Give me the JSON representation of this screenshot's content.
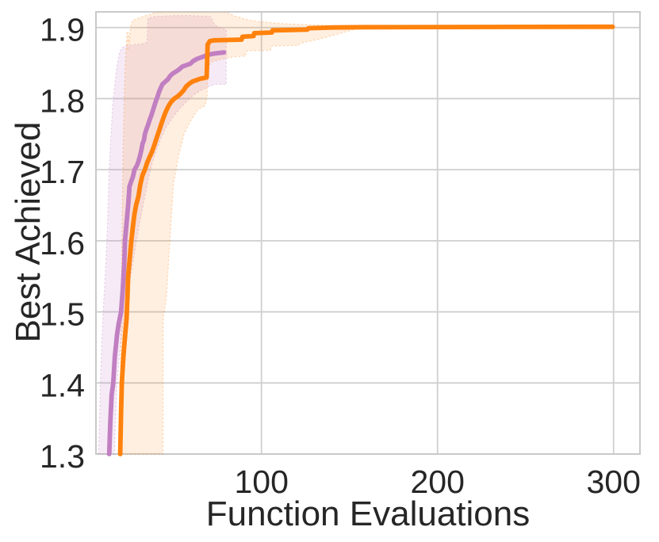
{
  "chart_data": {
    "type": "line",
    "title": "",
    "xlabel": "Function Evaluations",
    "ylabel": "Best Achieved",
    "xlim": [
      6,
      315
    ],
    "ylim": [
      1.3,
      1.922
    ],
    "xticks": [
      100,
      200,
      300
    ],
    "xtick_labels": [
      "100",
      "200",
      "300"
    ],
    "yticks": [
      1.3,
      1.4,
      1.5,
      1.6,
      1.7,
      1.8,
      1.9
    ],
    "ytick_labels": [
      "1.3",
      "1.4",
      "1.5",
      "1.6",
      "1.7",
      "1.8",
      "1.9"
    ],
    "grid": true,
    "legend": false,
    "background_color": "#ffffff",
    "grid_color": "#cfcfcf",
    "spine_color": "#c9c9c9",
    "text_color": "#262626",
    "series": [
      {
        "name": "purple",
        "color": "#c17fc2",
        "band_opacity": 0.16,
        "points": [
          [
            13.5,
            1.3
          ],
          [
            14.2,
            1.347
          ],
          [
            14.9,
            1.383
          ],
          [
            15.8,
            1.4
          ],
          [
            16.7,
            1.437
          ],
          [
            18.0,
            1.468
          ],
          [
            18.9,
            1.483
          ],
          [
            20.3,
            1.5
          ],
          [
            21.2,
            1.53
          ],
          [
            22.1,
            1.568
          ],
          [
            22.5,
            1.6
          ],
          [
            23.4,
            1.625
          ],
          [
            24.3,
            1.65
          ],
          [
            24.8,
            1.666
          ],
          [
            25.0,
            1.676
          ],
          [
            26.1,
            1.684
          ],
          [
            27.0,
            1.69
          ],
          [
            27.9,
            1.7
          ],
          [
            29.3,
            1.706
          ],
          [
            30.2,
            1.712
          ],
          [
            31.1,
            1.72
          ],
          [
            32.0,
            1.73
          ],
          [
            32.4,
            1.736
          ],
          [
            33.3,
            1.742
          ],
          [
            33.8,
            1.75
          ],
          [
            34.7,
            1.757
          ],
          [
            35.6,
            1.763
          ],
          [
            36.5,
            1.77
          ],
          [
            37.4,
            1.776
          ],
          [
            38.3,
            1.783
          ],
          [
            39.2,
            1.79
          ],
          [
            40.1,
            1.797
          ],
          [
            41.0,
            1.803
          ],
          [
            41.9,
            1.81
          ],
          [
            42.8,
            1.815
          ],
          [
            43.7,
            1.82
          ],
          [
            45.0,
            1.823
          ],
          [
            46.8,
            1.827
          ],
          [
            48.2,
            1.832
          ],
          [
            49.5,
            1.835
          ],
          [
            51.4,
            1.838
          ],
          [
            53.2,
            1.841
          ],
          [
            55.0,
            1.845
          ],
          [
            57.2,
            1.847
          ],
          [
            59.5,
            1.849
          ],
          [
            61.3,
            1.853
          ],
          [
            63.5,
            1.856
          ],
          [
            65.8,
            1.858
          ],
          [
            68.0,
            1.86
          ],
          [
            70.3,
            1.862
          ],
          [
            72.5,
            1.863
          ],
          [
            75.2,
            1.864
          ],
          [
            78.8,
            1.865
          ]
        ],
        "band_upper": [
          [
            7.5,
            1.3
          ],
          [
            8.5,
            1.4
          ],
          [
            9.5,
            1.47
          ],
          [
            10.5,
            1.52
          ],
          [
            11.5,
            1.56
          ],
          [
            12.5,
            1.62
          ],
          [
            13.5,
            1.7
          ],
          [
            14.5,
            1.75
          ],
          [
            15.5,
            1.79
          ],
          [
            16.5,
            1.815
          ],
          [
            17.5,
            1.838
          ],
          [
            18.5,
            1.855
          ],
          [
            19.5,
            1.866
          ],
          [
            21.0,
            1.872
          ],
          [
            24.0,
            1.875
          ],
          [
            28.0,
            1.876
          ],
          [
            32.0,
            1.877
          ],
          [
            35.0,
            1.879
          ],
          [
            35.5,
            1.913
          ],
          [
            40.0,
            1.9155
          ],
          [
            48.0,
            1.9165
          ],
          [
            58.0,
            1.917
          ],
          [
            66.0,
            1.916
          ],
          [
            71.0,
            1.9155
          ],
          [
            73.0,
            1.906
          ],
          [
            75.0,
            1.901
          ],
          [
            77.0,
            1.899
          ],
          [
            80.0,
            1.897
          ]
        ],
        "band_lower": [
          [
            16.5,
            1.3
          ],
          [
            17.0,
            1.34
          ],
          [
            17.5,
            1.37
          ],
          [
            18.0,
            1.4
          ],
          [
            19.0,
            1.43
          ],
          [
            20.0,
            1.455
          ],
          [
            22.0,
            1.49
          ],
          [
            24.0,
            1.52
          ],
          [
            26.0,
            1.555
          ],
          [
            28.0,
            1.585
          ],
          [
            30.0,
            1.615
          ],
          [
            32.0,
            1.64
          ],
          [
            34.0,
            1.665
          ],
          [
            36.0,
            1.69
          ],
          [
            38.0,
            1.71
          ],
          [
            40.0,
            1.725
          ],
          [
            43.0,
            1.745
          ],
          [
            46.0,
            1.76
          ],
          [
            50.0,
            1.775
          ],
          [
            54.0,
            1.787
          ],
          [
            58.0,
            1.797
          ],
          [
            62.0,
            1.806
          ],
          [
            66.0,
            1.812
          ],
          [
            70.0,
            1.817
          ],
          [
            74.0,
            1.82
          ],
          [
            80.0,
            1.82
          ]
        ]
      },
      {
        "name": "orange",
        "color": "#ff820d",
        "band_opacity": 0.13,
        "points": [
          [
            19.8,
            1.3
          ],
          [
            20.3,
            1.36
          ],
          [
            20.7,
            1.4
          ],
          [
            21.6,
            1.437
          ],
          [
            22.5,
            1.465
          ],
          [
            23.4,
            1.49
          ],
          [
            23.9,
            1.52
          ],
          [
            24.3,
            1.55
          ],
          [
            25.2,
            1.575
          ],
          [
            26.1,
            1.6
          ],
          [
            27.0,
            1.62
          ],
          [
            27.9,
            1.638
          ],
          [
            28.8,
            1.65
          ],
          [
            30.2,
            1.663
          ],
          [
            31.1,
            1.678
          ],
          [
            32.4,
            1.692
          ],
          [
            33.8,
            1.7
          ],
          [
            35.1,
            1.71
          ],
          [
            36.5,
            1.718
          ],
          [
            37.8,
            1.725
          ],
          [
            39.2,
            1.735
          ],
          [
            40.5,
            1.745
          ],
          [
            41.9,
            1.755
          ],
          [
            43.2,
            1.765
          ],
          [
            44.6,
            1.775
          ],
          [
            45.9,
            1.783
          ],
          [
            47.3,
            1.79
          ],
          [
            48.6,
            1.795
          ],
          [
            50.5,
            1.8
          ],
          [
            52.3,
            1.803
          ],
          [
            54.1,
            1.807
          ],
          [
            55.9,
            1.812
          ],
          [
            57.2,
            1.817
          ],
          [
            59.0,
            1.821
          ],
          [
            60.8,
            1.824
          ],
          [
            63.1,
            1.826
          ],
          [
            65.3,
            1.828
          ],
          [
            67.6,
            1.829
          ],
          [
            68.9,
            1.83
          ],
          [
            69.4,
            1.876
          ],
          [
            70.7,
            1.881
          ],
          [
            73.0,
            1.882
          ],
          [
            88.7,
            1.883
          ],
          [
            89.2,
            1.887
          ],
          [
            95.5,
            1.888
          ],
          [
            95.9,
            1.892
          ],
          [
            105.9,
            1.893
          ],
          [
            106.3,
            1.896
          ],
          [
            126.1,
            1.897
          ],
          [
            126.6,
            1.899
          ],
          [
            140.5,
            1.9
          ],
          [
            158.6,
            1.9005
          ],
          [
            299.5,
            1.901
          ]
        ],
        "band_upper": [
          [
            19.5,
            1.3
          ],
          [
            20.0,
            1.42
          ],
          [
            20.5,
            1.55
          ],
          [
            21.0,
            1.65
          ],
          [
            21.5,
            1.73
          ],
          [
            22.0,
            1.79
          ],
          [
            22.5,
            1.835
          ],
          [
            23.0,
            1.862
          ],
          [
            23.5,
            1.888
          ],
          [
            23.8,
            1.895
          ],
          [
            24.2,
            1.868
          ],
          [
            24.6,
            1.893
          ],
          [
            25.0,
            1.878
          ],
          [
            25.4,
            1.895
          ],
          [
            26.0,
            1.905
          ],
          [
            27.0,
            1.91
          ],
          [
            29.0,
            1.9125
          ],
          [
            32.0,
            1.915
          ],
          [
            36.0,
            1.918
          ],
          [
            40.0,
            1.921
          ],
          [
            46.0,
            1.923
          ],
          [
            78.0,
            1.923
          ],
          [
            82.0,
            1.9195
          ],
          [
            85.0,
            1.916
          ],
          [
            88.0,
            1.914
          ],
          [
            92.0,
            1.911
          ],
          [
            97.0,
            1.909
          ],
          [
            105.0,
            1.907
          ],
          [
            115.0,
            1.905
          ],
          [
            125.0,
            1.904
          ],
          [
            135.0,
            1.903
          ],
          [
            145.0,
            1.902
          ],
          [
            152.0,
            1.9015
          ],
          [
            158.6,
            1.901
          ]
        ],
        "band_lower": [
          [
            19.8,
            1.3
          ],
          [
            44.0,
            1.3
          ],
          [
            44.2,
            1.49
          ],
          [
            46.0,
            1.52
          ],
          [
            48.0,
            1.6
          ],
          [
            50.0,
            1.68
          ],
          [
            53.0,
            1.72
          ],
          [
            56.0,
            1.75
          ],
          [
            60.0,
            1.77
          ],
          [
            64.0,
            1.785
          ],
          [
            68.0,
            1.79
          ],
          [
            69.0,
            1.8
          ],
          [
            69.6,
            1.84
          ],
          [
            71.0,
            1.851
          ],
          [
            75.0,
            1.854
          ],
          [
            80.0,
            1.857
          ],
          [
            85.0,
            1.859
          ],
          [
            91.0,
            1.86
          ],
          [
            91.5,
            1.867
          ],
          [
            105.0,
            1.868
          ],
          [
            106.0,
            1.874
          ],
          [
            121.0,
            1.875
          ],
          [
            122.0,
            1.878
          ],
          [
            135.0,
            1.885
          ],
          [
            145.0,
            1.892
          ],
          [
            152.0,
            1.897
          ],
          [
            158.6,
            1.9
          ]
        ]
      }
    ]
  }
}
